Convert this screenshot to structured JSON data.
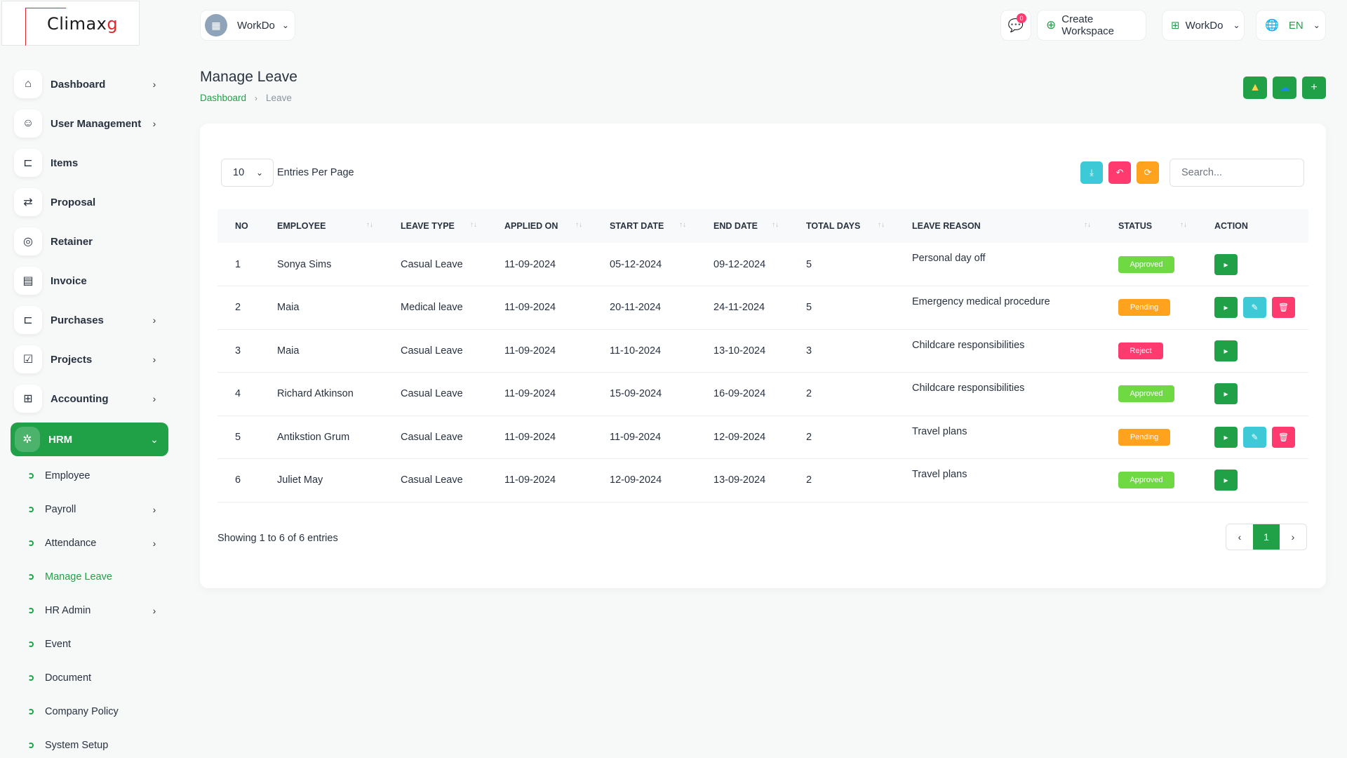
{
  "logo": {
    "text": "Climax",
    "accent": "g"
  },
  "header": {
    "workspace_select": "WorkDo",
    "notifications_count": "0",
    "create_workspace": "Create Workspace",
    "workspace_menu": "WorkDo",
    "language": "EN"
  },
  "sidebar": {
    "items": [
      {
        "label": "Dashboard",
        "icon": "home-icon",
        "has_children": true
      },
      {
        "label": "User Management",
        "icon": "users-icon",
        "has_children": true
      },
      {
        "label": "Items",
        "icon": "cart-icon",
        "has_children": false
      },
      {
        "label": "Proposal",
        "icon": "replace-icon",
        "has_children": false
      },
      {
        "label": "Retainer",
        "icon": "medal-icon",
        "has_children": false
      },
      {
        "label": "Invoice",
        "icon": "file-invoice-icon",
        "has_children": false
      },
      {
        "label": "Purchases",
        "icon": "shopping-cart-icon",
        "has_children": true
      },
      {
        "label": "Projects",
        "icon": "square-check-icon",
        "has_children": true
      },
      {
        "label": "Accounting",
        "icon": "layout-grid-add-icon",
        "has_children": true
      },
      {
        "label": "HRM",
        "icon": "hrm-icon",
        "has_children": true,
        "active": true
      }
    ],
    "hrm_sub": [
      {
        "label": "Employee",
        "has_children": false
      },
      {
        "label": "Payroll",
        "has_children": true
      },
      {
        "label": "Attendance",
        "has_children": true
      },
      {
        "label": "Manage Leave",
        "has_children": false,
        "current": true
      },
      {
        "label": "HR Admin",
        "has_children": true
      },
      {
        "label": "Event",
        "has_children": false
      },
      {
        "label": "Document",
        "has_children": false
      },
      {
        "label": "Company Policy",
        "has_children": false
      },
      {
        "label": "System Setup",
        "has_children": false
      }
    ]
  },
  "page": {
    "title": "Manage Leave",
    "breadcrumb": {
      "home": "Dashboard",
      "current": "Leave"
    }
  },
  "table_controls": {
    "entries_value": "10",
    "entries_label": "Entries Per Page",
    "search_placeholder": "Search..."
  },
  "table": {
    "columns": [
      "NO",
      "EMPLOYEE",
      "LEAVE TYPE",
      "APPLIED ON",
      "START DATE",
      "END DATE",
      "TOTAL DAYS",
      "LEAVE REASON",
      "STATUS",
      "ACTION"
    ],
    "rows": [
      {
        "no": "1",
        "employee": "Sonya Sims",
        "leave_type": "Casual Leave",
        "applied_on": "11-09-2024",
        "start_date": "05-12-2024",
        "end_date": "09-12-2024",
        "total_days": "5",
        "reason": "Personal day off",
        "status": "Approved"
      },
      {
        "no": "2",
        "employee": "Maia",
        "leave_type": "Medical leave",
        "applied_on": "11-09-2024",
        "start_date": "20-11-2024",
        "end_date": "24-11-2024",
        "total_days": "5",
        "reason": "Emergency medical procedure",
        "status": "Pending"
      },
      {
        "no": "3",
        "employee": "Maia",
        "leave_type": "Casual Leave",
        "applied_on": "11-09-2024",
        "start_date": "11-10-2024",
        "end_date": "13-10-2024",
        "total_days": "3",
        "reason": "Childcare responsibilities",
        "status": "Reject"
      },
      {
        "no": "4",
        "employee": "Richard Atkinson",
        "leave_type": "Casual Leave",
        "applied_on": "11-09-2024",
        "start_date": "15-09-2024",
        "end_date": "16-09-2024",
        "total_days": "2",
        "reason": "Childcare responsibilities",
        "status": "Approved"
      },
      {
        "no": "5",
        "employee": "Antikstion Grum",
        "leave_type": "Casual Leave",
        "applied_on": "11-09-2024",
        "start_date": "11-09-2024",
        "end_date": "12-09-2024",
        "total_days": "2",
        "reason": "Travel plans",
        "status": "Pending"
      },
      {
        "no": "6",
        "employee": "Juliet May",
        "leave_type": "Casual Leave",
        "applied_on": "11-09-2024",
        "start_date": "12-09-2024",
        "end_date": "13-09-2024",
        "total_days": "2",
        "reason": "Travel plans",
        "status": "Approved"
      }
    ]
  },
  "footer": {
    "showing": "Showing 1 to 6 of 6 entries",
    "current_page": "1"
  },
  "colors": {
    "primary": "#20a148",
    "approved": "#6fd943",
    "pending": "#ffa21d",
    "reject": "#ff3a6e",
    "info": "#3ec9d6"
  }
}
